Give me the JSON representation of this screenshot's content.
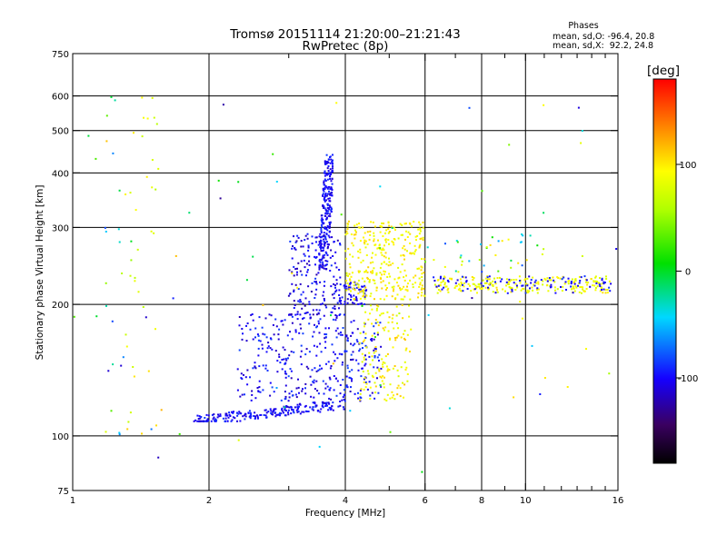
{
  "chart_data": {
    "type": "scatter",
    "title": "Tromsø 20151114 21:20:00–21:21:43",
    "subtitle": "RwPretec (8p)",
    "xlabel": "Frequency [MHz]",
    "ylabel": "Stationary phase Virtual Height [km]",
    "x_scale": "log",
    "y_scale": "log",
    "xlim": [
      1,
      16
    ],
    "ylim": [
      75,
      750
    ],
    "x_ticks": [
      1,
      2,
      4,
      6,
      8,
      10,
      16
    ],
    "x_ticks_labeled": [
      1,
      2,
      4,
      6,
      8,
      10,
      16
    ],
    "x_tick_labels": [
      "1",
      "2",
      "4",
      "6",
      "8",
      "10",
      "16"
    ],
    "x_minor_ticks": [
      3,
      5,
      7,
      9,
      11,
      12,
      13,
      14,
      15
    ],
    "x_gridlines": [
      2,
      4,
      6,
      8,
      10
    ],
    "y_ticks": [
      75,
      100,
      200,
      300,
      400,
      500,
      600,
      750
    ],
    "y_tick_labels": [
      "75",
      "100",
      "200",
      "300",
      "400",
      "500",
      "600",
      "750"
    ],
    "y_gridlines": [
      100,
      200,
      300,
      400,
      500,
      600
    ],
    "grid": true,
    "phases_title": "Phases",
    "phase_stats": [
      "mean, sd,O: -96.4, 20.8",
      "mean, sd,X:  92.2, 24.8"
    ],
    "colorbar": {
      "label": "[deg]",
      "range": [
        -180,
        180
      ],
      "ticks": [
        100,
        0,
        -100
      ],
      "tick_labels": [
        "100",
        "0",
        "-100"
      ],
      "colormap": "rainbow-black-to-red"
    },
    "clusters": [
      {
        "x": [
          1.85,
          4.0
        ],
        "y": [
          108,
          122
        ],
        "phase": [
          -115,
          -85
        ],
        "n": 230,
        "shape": "rising"
      },
      {
        "x": [
          2.3,
          4.8
        ],
        "y": [
          120,
          190
        ],
        "phase": [
          -120,
          -80
        ],
        "n": 360,
        "shape": "fill"
      },
      {
        "x": [
          3.0,
          3.9
        ],
        "y": [
          185,
          290
        ],
        "phase": [
          -125,
          -85
        ],
        "n": 170,
        "shape": "fill"
      },
      {
        "x": [
          3.35,
          3.75
        ],
        "y": [
          240,
          440
        ],
        "phase": [
          -115,
          -85
        ],
        "n": 240,
        "shape": "cusp"
      },
      {
        "x": [
          3.75,
          4.5
        ],
        "y": [
          200,
          225
        ],
        "phase": [
          -110,
          -90
        ],
        "n": 70,
        "shape": "fill"
      },
      {
        "x": [
          4.0,
          6.0
        ],
        "y": [
          205,
          310
        ],
        "phase": [
          80,
          110
        ],
        "n": 320,
        "shape": "fill"
      },
      {
        "x": [
          4.3,
          5.6
        ],
        "y": [
          120,
          200
        ],
        "phase": [
          75,
          115
        ],
        "n": 140,
        "shape": "fill"
      },
      {
        "x": [
          6.3,
          15.5
        ],
        "y": [
          212,
          232
        ],
        "phase": [
          75,
          105
        ],
        "n": 220,
        "shape": "band"
      },
      {
        "x": [
          6.2,
          15.5
        ],
        "y": [
          212,
          232
        ],
        "phase": [
          -110,
          -85
        ],
        "n": 90,
        "shape": "band"
      },
      {
        "x": [
          6.0,
          11.0
        ],
        "y": [
          235,
          290
        ],
        "phase": [
          -100,
          110
        ],
        "n": 40,
        "shape": "fill"
      },
      {
        "x": [
          1.3,
          1.55
        ],
        "y": [
          95,
          620
        ],
        "phase": [
          60,
          110
        ],
        "n": 35,
        "shape": "column"
      },
      {
        "x": [
          1.18,
          1.3
        ],
        "y": [
          100,
          620
        ],
        "phase": [
          -120,
          80
        ],
        "n": 20,
        "shape": "column"
      },
      {
        "x": [
          1.0,
          16.0
        ],
        "y": [
          80,
          600
        ],
        "phase": [
          -130,
          120
        ],
        "n": 70,
        "shape": "fill"
      }
    ]
  }
}
